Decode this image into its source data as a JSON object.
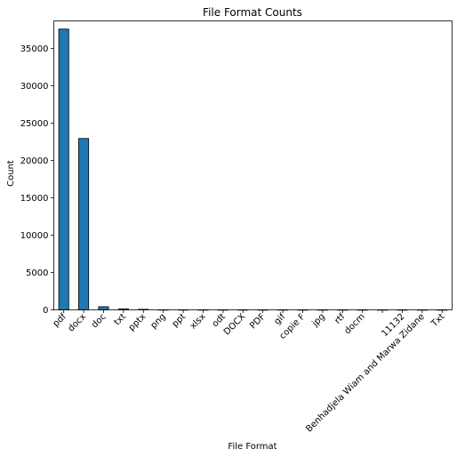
{
  "chart_data": {
    "type": "bar",
    "title": "File Format Counts",
    "xlabel": "File Format",
    "ylabel": "Count",
    "categories": [
      "pdf",
      "docx",
      "doc",
      "txt",
      "pptx",
      "png",
      "ppt",
      "xlsx",
      "odt",
      "DOCX",
      "PDF",
      "gif",
      "copie F",
      "jpg",
      "rtf",
      "docm",
      "",
      "11132",
      "Benhadjela Wiam and Marwa Zidane",
      "Txt"
    ],
    "values": [
      37600,
      22950,
      420,
      130,
      70,
      12,
      8,
      6,
      5,
      4,
      3,
      3,
      2,
      2,
      2,
      1,
      1,
      1,
      1,
      1
    ],
    "ylim": [
      0,
      38700
    ],
    "yticks": [
      0,
      5000,
      10000,
      15000,
      20000,
      25000,
      30000,
      35000
    ],
    "grid": false,
    "legend": "none",
    "bar_color": "#1f77b4",
    "edge_color": "#000000"
  }
}
